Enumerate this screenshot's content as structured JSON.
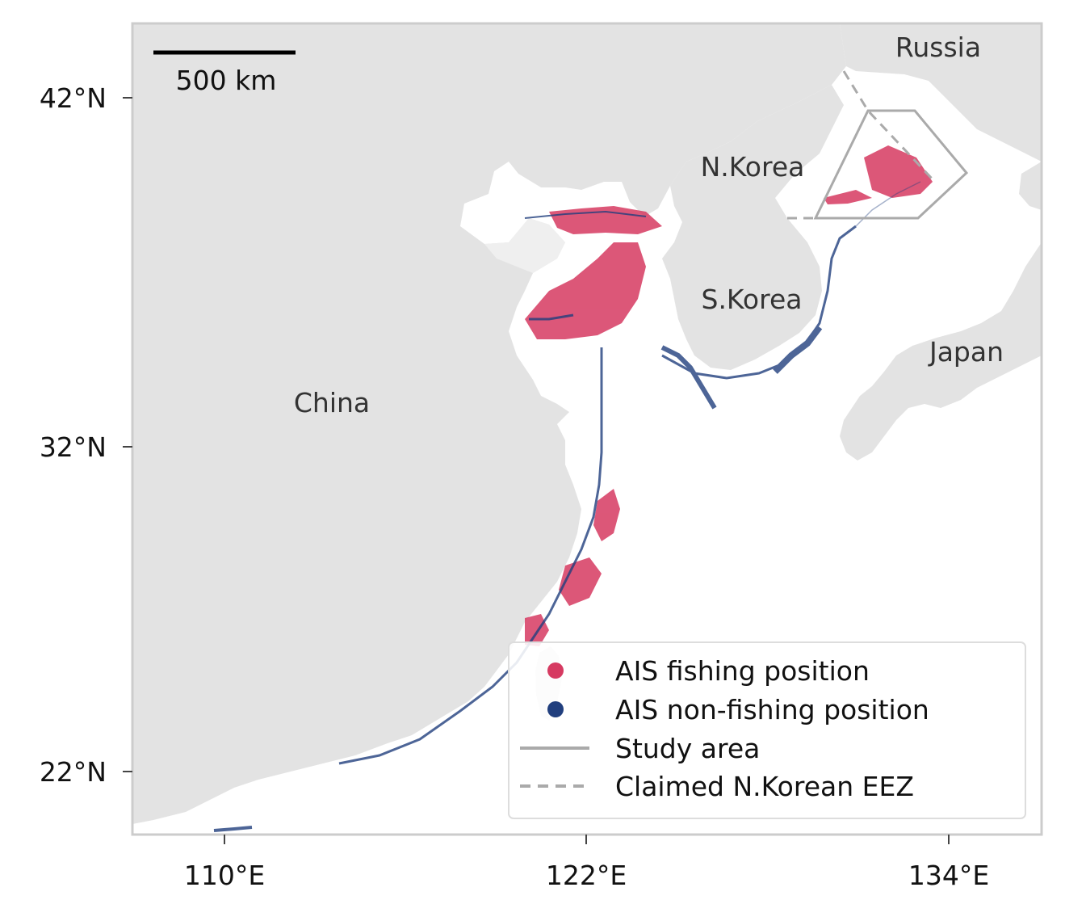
{
  "map": {
    "axes": {
      "y_ticks": [
        {
          "label": "42°N",
          "value": 42
        },
        {
          "label": "32°N",
          "value": 32
        },
        {
          "label": "22°N",
          "value": 22
        }
      ],
      "x_ticks": [
        {
          "label": "110°E",
          "value": 110
        },
        {
          "label": "122°E",
          "value": 122
        },
        {
          "label": "134°E",
          "value": 134
        }
      ]
    },
    "country_labels": {
      "russia": "Russia",
      "nkorea": "N.Korea",
      "skorea": "S.Korea",
      "japan": "Japan",
      "china": "China"
    },
    "scale_bar": {
      "label": "500 km"
    },
    "legend": {
      "fishing": "AIS fishing position",
      "nonfishing": "AIS non-fishing position",
      "study_area": "Study area",
      "eez": "Claimed N.Korean EEZ"
    },
    "colors": {
      "fishing": "#d63a61",
      "nonfishing": "#213f7e",
      "land": "#e3e3e3",
      "boundary": "#aaaaaa"
    }
  }
}
